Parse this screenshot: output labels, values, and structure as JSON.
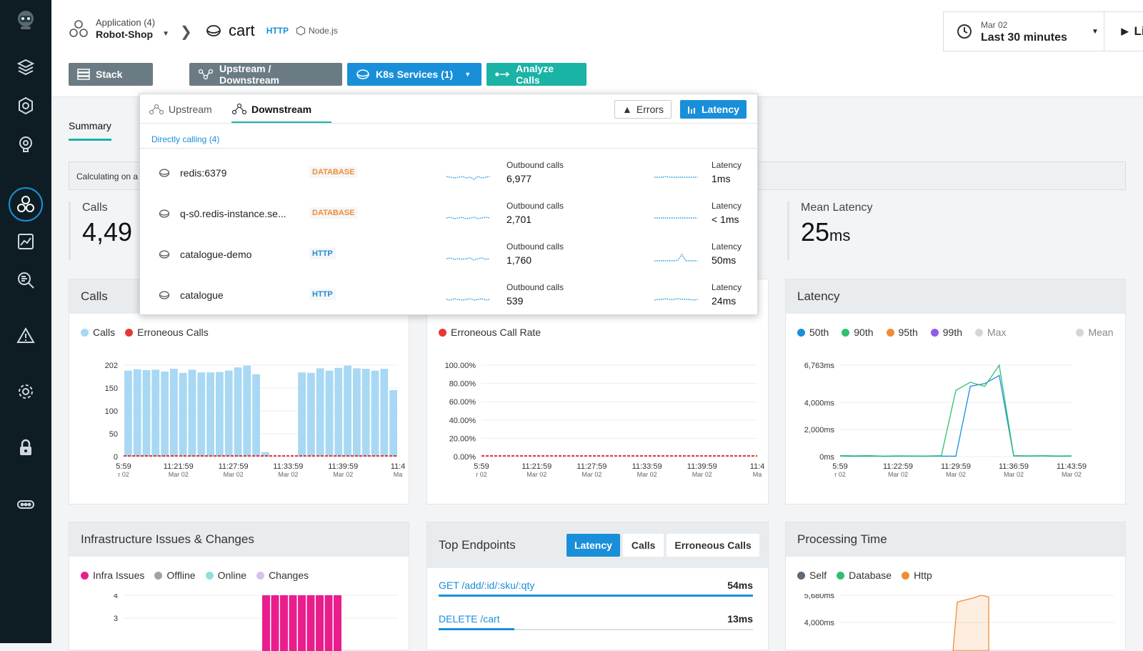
{
  "header": {
    "app_label": "Application (4)",
    "app_name": "Robot-Shop",
    "service_name": "cart",
    "service_type": "HTTP",
    "service_tech": "Node.js",
    "time_date": "Mar 02",
    "time_range": "Last 30 minutes",
    "live_label": "Live"
  },
  "toolbar": {
    "stack": "Stack",
    "upstream_downstream": "Upstream / Downstream",
    "k8s": "K8s Services (1)",
    "analyze": "Analyze Calls"
  },
  "tabs": {
    "summary": "Summary"
  },
  "calc_text": "Calculating on a",
  "stats": {
    "calls_label": "Calls",
    "calls_value": "4,49",
    "mean_latency_label": "Mean Latency",
    "mean_latency_value": "25",
    "mean_latency_unit": "ms"
  },
  "popup": {
    "tab_upstream": "Upstream",
    "tab_downstream": "Downstream",
    "errors_btn": "Errors",
    "latency_btn": "Latency",
    "section_title": "Directly calling (4)",
    "outbound_label": "Outbound calls",
    "latency_label": "Latency",
    "rows": [
      {
        "name": "redis:6379",
        "type": "DATABASE",
        "calls": "6,977",
        "latency": "1ms"
      },
      {
        "name": "q-s0.redis-instance.se...",
        "type": "DATABASE",
        "calls": "2,701",
        "latency": "< 1ms"
      },
      {
        "name": "catalogue-demo",
        "type": "HTTP",
        "calls": "1,760",
        "latency": "50ms"
      },
      {
        "name": "catalogue",
        "type": "HTTP",
        "calls": "539",
        "latency": "24ms"
      }
    ]
  },
  "colors": {
    "sidebar": "#0e1d24",
    "accent_teal": "#1ab3a6",
    "accent_blue": "#1a8fd9",
    "database_orange": "#f08c35",
    "calls_bar": "#a8d8f3",
    "error_red": "#e53935"
  },
  "cards": {
    "calls_title": "Calls",
    "latency_title": "Latency",
    "infra_title": "Infrastructure Issues & Changes",
    "endpoints_title": "Top Endpoints",
    "processing_title": "Processing Time"
  },
  "legends": {
    "calls": [
      "Calls",
      "Erroneous Calls"
    ],
    "error_rate": [
      "Erroneous Call Rate"
    ],
    "latency": [
      "50th",
      "90th",
      "95th",
      "99th",
      "Max",
      "Mean"
    ],
    "infra": [
      "Infra Issues",
      "Offline",
      "Online",
      "Changes"
    ],
    "processing": [
      "Self",
      "Database",
      "Http"
    ]
  },
  "endpoints": {
    "tab_latency": "Latency",
    "tab_calls": "Calls",
    "tab_errors": "Erroneous Calls",
    "rows": [
      {
        "name": "GET /add/:id/:sku/:qty",
        "value": "54ms",
        "fill": 1.0
      },
      {
        "name": "DELETE /cart",
        "value": "13ms",
        "fill": 0.24
      }
    ]
  },
  "chart_data": [
    {
      "type": "bar",
      "name": "Calls",
      "yticks": [
        "202",
        "150",
        "100",
        "50",
        "0"
      ],
      "ylim": [
        0,
        202
      ],
      "xticks": [
        "5:59",
        "11:21:59",
        "11:27:59",
        "11:33:59",
        "11:39:59",
        "11:4"
      ],
      "xsub": [
        "r 02",
        "Mar 02",
        "Mar 02",
        "Mar 02",
        "Mar 02",
        "Ma"
      ],
      "series": [
        {
          "name": "Calls",
          "values": [
            190,
            193,
            191,
            192,
            188,
            194,
            185,
            192,
            186,
            186,
            187,
            190,
            197,
            201,
            182,
            10,
            0,
            0,
            0,
            186,
            185,
            195,
            190,
            196,
            201,
            195,
            194,
            190,
            194,
            147
          ]
        },
        {
          "name": "Erroneous Calls",
          "values": [
            0
          ]
        }
      ]
    },
    {
      "type": "line",
      "name": "Erroneous Call Rate",
      "yticks": [
        "100.00%",
        "80.00%",
        "60.00%",
        "40.00%",
        "20.00%",
        "0.00%"
      ],
      "ylim": [
        0,
        100
      ],
      "xticks": [
        "5:59",
        "11:21:59",
        "11:27:59",
        "11:33:59",
        "11:39:59",
        "11:4"
      ],
      "xsub": [
        "r 02",
        "Mar 02",
        "Mar 02",
        "Mar 02",
        "Mar 02",
        "Ma"
      ],
      "series": [
        {
          "name": "Erroneous Call Rate",
          "values": [
            0,
            0
          ]
        }
      ]
    },
    {
      "type": "line",
      "name": "Latency",
      "yticks": [
        "6,763ms",
        "4,000ms",
        "2,000ms",
        "0ms"
      ],
      "yvals": [
        6763,
        4000,
        2000,
        0
      ],
      "ylim": [
        0,
        6763
      ],
      "xticks": [
        "5:59",
        "11:22:59",
        "11:29:59",
        "11:36:59",
        "11:43:59"
      ],
      "xsub": [
        "r 02",
        "Mar 02",
        "Mar 02",
        "Mar 02",
        "Mar 02"
      ],
      "series": [
        {
          "name": "50th",
          "values": [
            50,
            30,
            40,
            20,
            35,
            30,
            25,
            40,
            30,
            5200,
            5400,
            6000,
            50,
            40,
            45,
            30,
            40
          ]
        },
        {
          "name": "90th",
          "values": [
            80,
            60,
            70,
            40,
            60,
            50,
            45,
            70,
            4900,
            5500,
            5200,
            6763,
            80,
            60,
            70,
            50,
            60
          ]
        }
      ]
    },
    {
      "type": "bar",
      "name": "Infrastructure Issues & Changes",
      "yticks": [
        "4",
        "3"
      ],
      "ylim": [
        0,
        4
      ],
      "series": [
        {
          "name": "Infra Issues",
          "values": [
            4,
            4,
            4,
            4,
            4,
            4,
            4,
            4,
            4
          ]
        }
      ]
    },
    {
      "type": "area",
      "name": "Processing Time",
      "yticks": [
        "5,680ms",
        "4,000ms"
      ],
      "ylim": [
        0,
        5680
      ],
      "series": [
        {
          "name": "Http",
          "values": [
            0,
            5000,
            5400,
            5680,
            5500
          ]
        }
      ]
    }
  ]
}
